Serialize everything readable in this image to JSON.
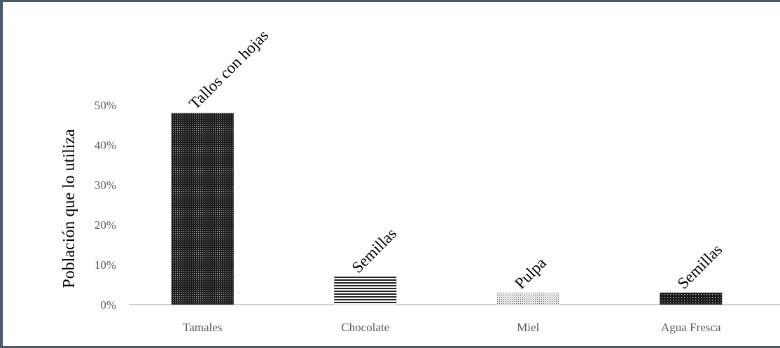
{
  "chart_data": {
    "type": "bar",
    "ylabel": "Población que lo utiliza",
    "categories": [
      "Tamales",
      "Chocolate",
      "Miel",
      "Agua Fresca"
    ],
    "values": [
      0.48,
      0.07,
      0.03,
      0.03
    ],
    "data_labels": [
      "Tallos con hojas",
      "Semillas",
      "Pulpa",
      "Semillas"
    ],
    "ylim": [
      0,
      0.5
    ],
    "yticks": [
      "0%",
      "10%",
      "20%",
      "30%",
      "40%",
      "50%"
    ],
    "grid": false,
    "legend": "none",
    "patterns": [
      "dense-dots",
      "horizontal-stripes",
      "light-dots",
      "dark-dots"
    ]
  }
}
